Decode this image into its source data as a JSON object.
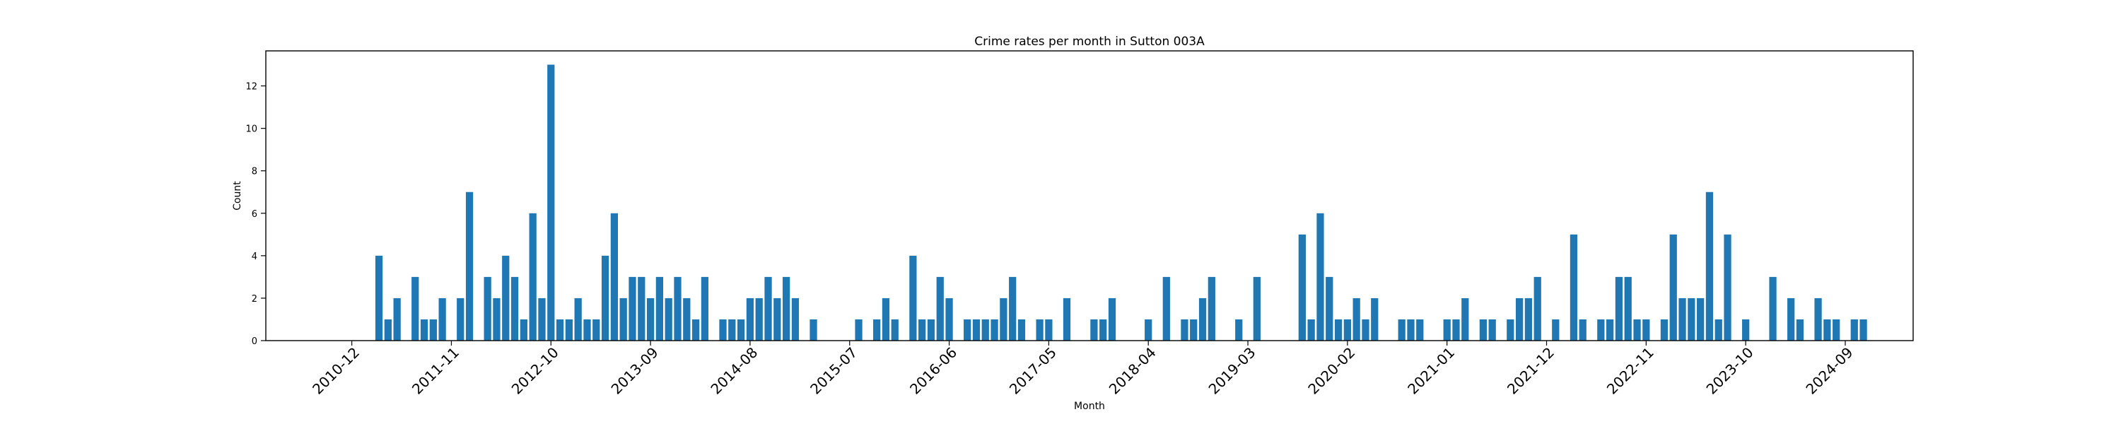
{
  "chart_data": {
    "type": "bar",
    "title": "Crime rates per month in Sutton 003A",
    "xlabel": "Month",
    "ylabel": "Count",
    "ylim": [
      0,
      13.65
    ],
    "yticks": [
      0,
      2,
      4,
      6,
      8,
      10,
      12
    ],
    "x_axis": "monthly, 2010-03 to 2025-05",
    "xtick_labels": [
      "2010-12",
      "2011-11",
      "2012-10",
      "2013-09",
      "2014-08",
      "2015-07",
      "2016-06",
      "2017-05",
      "2018-04",
      "2019-03",
      "2020-02",
      "2021-01",
      "2021-12",
      "2022-11",
      "2023-10",
      "2024-09"
    ],
    "bar_color": "#1f77b4",
    "grid": false,
    "legend": "none",
    "points": [
      {
        "x": "2011-03",
        "y": 4
      },
      {
        "x": "2011-04",
        "y": 1
      },
      {
        "x": "2011-05",
        "y": 2
      },
      {
        "x": "2011-07",
        "y": 3
      },
      {
        "x": "2011-08",
        "y": 1
      },
      {
        "x": "2011-09",
        "y": 1
      },
      {
        "x": "2011-10",
        "y": 2
      },
      {
        "x": "2011-12",
        "y": 2
      },
      {
        "x": "2012-01",
        "y": 7
      },
      {
        "x": "2012-03",
        "y": 3
      },
      {
        "x": "2012-04",
        "y": 2
      },
      {
        "x": "2012-05",
        "y": 4
      },
      {
        "x": "2012-06",
        "y": 3
      },
      {
        "x": "2012-07",
        "y": 1
      },
      {
        "x": "2012-08",
        "y": 6
      },
      {
        "x": "2012-09",
        "y": 2
      },
      {
        "x": "2012-10",
        "y": 13
      },
      {
        "x": "2012-11",
        "y": 1
      },
      {
        "x": "2012-12",
        "y": 1
      },
      {
        "x": "2013-01",
        "y": 2
      },
      {
        "x": "2013-02",
        "y": 1
      },
      {
        "x": "2013-03",
        "y": 1
      },
      {
        "x": "2013-04",
        "y": 4
      },
      {
        "x": "2013-05",
        "y": 6
      },
      {
        "x": "2013-06",
        "y": 2
      },
      {
        "x": "2013-07",
        "y": 3
      },
      {
        "x": "2013-08",
        "y": 3
      },
      {
        "x": "2013-09",
        "y": 2
      },
      {
        "x": "2013-10",
        "y": 3
      },
      {
        "x": "2013-11",
        "y": 2
      },
      {
        "x": "2013-12",
        "y": 3
      },
      {
        "x": "2014-01",
        "y": 2
      },
      {
        "x": "2014-02",
        "y": 1
      },
      {
        "x": "2014-03",
        "y": 3
      },
      {
        "x": "2014-05",
        "y": 1
      },
      {
        "x": "2014-06",
        "y": 1
      },
      {
        "x": "2014-07",
        "y": 1
      },
      {
        "x": "2014-08",
        "y": 2
      },
      {
        "x": "2014-09",
        "y": 2
      },
      {
        "x": "2014-10",
        "y": 3
      },
      {
        "x": "2014-11",
        "y": 2
      },
      {
        "x": "2014-12",
        "y": 3
      },
      {
        "x": "2015-01",
        "y": 2
      },
      {
        "x": "2015-03",
        "y": 1
      },
      {
        "x": "2015-08",
        "y": 1
      },
      {
        "x": "2015-10",
        "y": 1
      },
      {
        "x": "2015-11",
        "y": 2
      },
      {
        "x": "2015-12",
        "y": 1
      },
      {
        "x": "2016-02",
        "y": 4
      },
      {
        "x": "2016-03",
        "y": 1
      },
      {
        "x": "2016-04",
        "y": 1
      },
      {
        "x": "2016-05",
        "y": 3
      },
      {
        "x": "2016-06",
        "y": 2
      },
      {
        "x": "2016-08",
        "y": 1
      },
      {
        "x": "2016-09",
        "y": 1
      },
      {
        "x": "2016-10",
        "y": 1
      },
      {
        "x": "2016-11",
        "y": 1
      },
      {
        "x": "2016-12",
        "y": 2
      },
      {
        "x": "2017-01",
        "y": 3
      },
      {
        "x": "2017-02",
        "y": 1
      },
      {
        "x": "2017-04",
        "y": 1
      },
      {
        "x": "2017-05",
        "y": 1
      },
      {
        "x": "2017-07",
        "y": 2
      },
      {
        "x": "2017-10",
        "y": 1
      },
      {
        "x": "2017-11",
        "y": 1
      },
      {
        "x": "2017-12",
        "y": 2
      },
      {
        "x": "2018-04",
        "y": 1
      },
      {
        "x": "2018-06",
        "y": 3
      },
      {
        "x": "2018-08",
        "y": 1
      },
      {
        "x": "2018-09",
        "y": 1
      },
      {
        "x": "2018-10",
        "y": 2
      },
      {
        "x": "2018-11",
        "y": 3
      },
      {
        "x": "2019-02",
        "y": 1
      },
      {
        "x": "2019-04",
        "y": 3
      },
      {
        "x": "2019-09",
        "y": 5
      },
      {
        "x": "2019-10",
        "y": 1
      },
      {
        "x": "2019-11",
        "y": 6
      },
      {
        "x": "2019-12",
        "y": 3
      },
      {
        "x": "2020-01",
        "y": 1
      },
      {
        "x": "2020-02",
        "y": 1
      },
      {
        "x": "2020-03",
        "y": 2
      },
      {
        "x": "2020-04",
        "y": 1
      },
      {
        "x": "2020-05",
        "y": 2
      },
      {
        "x": "2020-08",
        "y": 1
      },
      {
        "x": "2020-09",
        "y": 1
      },
      {
        "x": "2020-10",
        "y": 1
      },
      {
        "x": "2021-01",
        "y": 1
      },
      {
        "x": "2021-02",
        "y": 1
      },
      {
        "x": "2021-03",
        "y": 2
      },
      {
        "x": "2021-05",
        "y": 1
      },
      {
        "x": "2021-06",
        "y": 1
      },
      {
        "x": "2021-08",
        "y": 1
      },
      {
        "x": "2021-09",
        "y": 2
      },
      {
        "x": "2021-10",
        "y": 2
      },
      {
        "x": "2021-11",
        "y": 3
      },
      {
        "x": "2022-01",
        "y": 1
      },
      {
        "x": "2022-03",
        "y": 5
      },
      {
        "x": "2022-04",
        "y": 1
      },
      {
        "x": "2022-06",
        "y": 1
      },
      {
        "x": "2022-07",
        "y": 1
      },
      {
        "x": "2022-08",
        "y": 3
      },
      {
        "x": "2022-09",
        "y": 3
      },
      {
        "x": "2022-10",
        "y": 1
      },
      {
        "x": "2022-11",
        "y": 1
      },
      {
        "x": "2023-01",
        "y": 1
      },
      {
        "x": "2023-02",
        "y": 5
      },
      {
        "x": "2023-03",
        "y": 2
      },
      {
        "x": "2023-04",
        "y": 2
      },
      {
        "x": "2023-05",
        "y": 2
      },
      {
        "x": "2023-06",
        "y": 7
      },
      {
        "x": "2023-07",
        "y": 1
      },
      {
        "x": "2023-08",
        "y": 5
      },
      {
        "x": "2023-10",
        "y": 1
      },
      {
        "x": "2024-01",
        "y": 3
      },
      {
        "x": "2024-03",
        "y": 2
      },
      {
        "x": "2024-04",
        "y": 1
      },
      {
        "x": "2024-06",
        "y": 2
      },
      {
        "x": "2024-07",
        "y": 1
      },
      {
        "x": "2024-08",
        "y": 1
      },
      {
        "x": "2024-10",
        "y": 1
      },
      {
        "x": "2024-11",
        "y": 1
      }
    ]
  }
}
